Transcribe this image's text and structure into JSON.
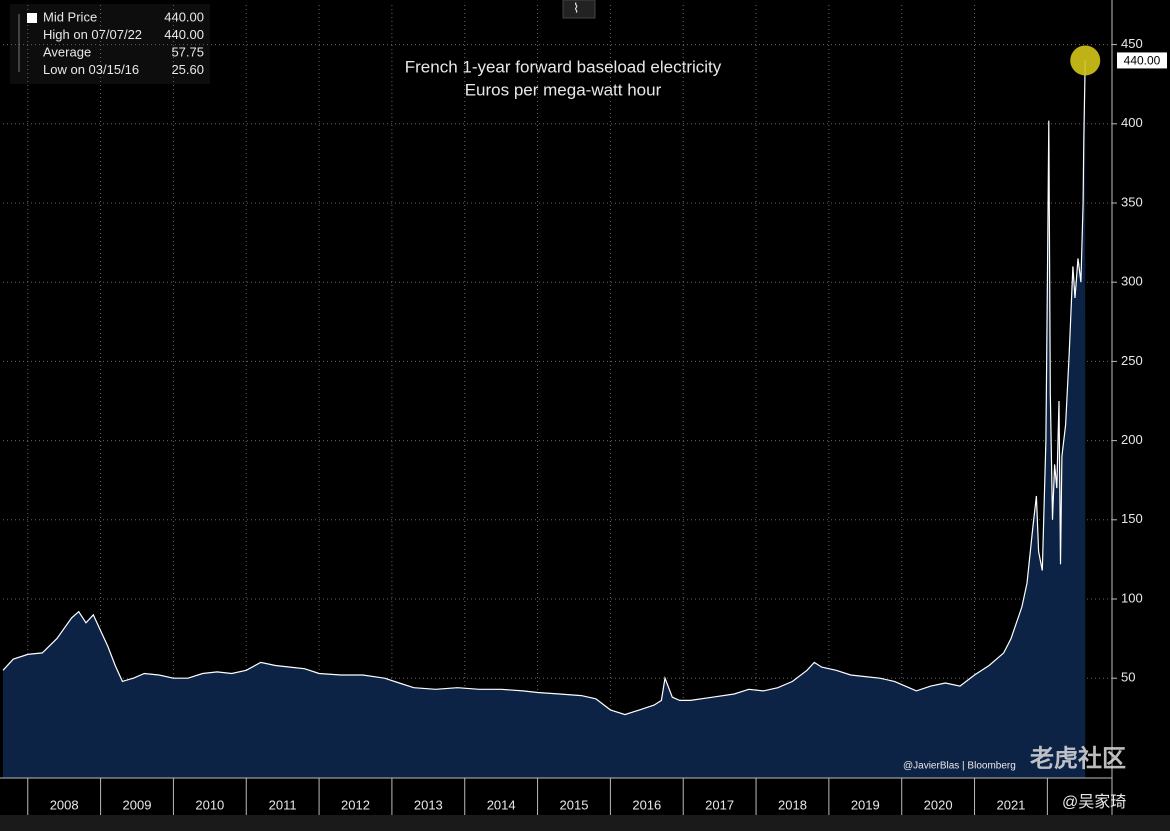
{
  "chart_data": {
    "type": "area",
    "title": "French 1-year forward baseload electricity",
    "subtitle": "Euros per mega-watt hour",
    "legend": [
      {
        "label": "Mid Price",
        "value": "440.00"
      },
      {
        "label": "High on 07/07/22",
        "value": "440.00"
      },
      {
        "label": "Average",
        "value": "57.75"
      },
      {
        "label": "Low on 03/15/16",
        "value": "25.60"
      }
    ],
    "last_value_label": "440.00",
    "credits": [
      "@JavierBlas | Bloomberg",
      "老虎社区",
      "@吴家琦"
    ],
    "x": [
      2007.66,
      2007.8,
      2008.0,
      2008.2,
      2008.4,
      2008.6,
      2008.7,
      2008.8,
      2008.9,
      2009.0,
      2009.1,
      2009.2,
      2009.3,
      2009.45,
      2009.6,
      2009.8,
      2010.0,
      2010.2,
      2010.4,
      2010.6,
      2010.8,
      2011.0,
      2011.2,
      2011.4,
      2011.6,
      2011.8,
      2012.0,
      2012.3,
      2012.6,
      2012.9,
      2013.1,
      2013.3,
      2013.6,
      2013.9,
      2014.2,
      2014.5,
      2014.8,
      2015.0,
      2015.3,
      2015.6,
      2015.8,
      2016.0,
      2016.2,
      2016.4,
      2016.6,
      2016.7,
      2016.75,
      2016.85,
      2016.95,
      2017.1,
      2017.4,
      2017.7,
      2017.9,
      2018.1,
      2018.3,
      2018.5,
      2018.7,
      2018.8,
      2018.9,
      2019.1,
      2019.3,
      2019.5,
      2019.7,
      2019.9,
      2020.1,
      2020.2,
      2020.4,
      2020.6,
      2020.8,
      2021.0,
      2021.2,
      2021.4,
      2021.5,
      2021.65,
      2021.72,
      2021.8,
      2021.85,
      2021.88,
      2021.93,
      2021.98,
      2022.0,
      2022.02,
      2022.04,
      2022.07,
      2022.1,
      2022.13,
      2022.16,
      2022.18,
      2022.2,
      2022.25,
      2022.3,
      2022.35,
      2022.38,
      2022.42,
      2022.46,
      2022.49,
      2022.5,
      2022.52
    ],
    "series": [
      {
        "name": "Mid Price",
        "color": "#ffffff",
        "fill": "#0c2345",
        "values": [
          55,
          62,
          65,
          66,
          75,
          88,
          92,
          85,
          90,
          80,
          70,
          58,
          48,
          50,
          53,
          52,
          50,
          50,
          53,
          54,
          53,
          55,
          60,
          58,
          57,
          56,
          53,
          52,
          52,
          50,
          47,
          44,
          43,
          44,
          43,
          43,
          42,
          41,
          40,
          39,
          37,
          30,
          27,
          30,
          33,
          36,
          50,
          38,
          36,
          36,
          38,
          40,
          43,
          42,
          44,
          48,
          55,
          60,
          57,
          55,
          52,
          51,
          50,
          48,
          44,
          42,
          45,
          47,
          45,
          52,
          58,
          66,
          75,
          95,
          110,
          145,
          165,
          130,
          118,
          200,
          300,
          402,
          230,
          150,
          185,
          170,
          225,
          122,
          190,
          210,
          255,
          310,
          290,
          315,
          300,
          350,
          390,
          440
        ]
      }
    ],
    "xlim": [
      2007.66,
      2022.86
    ],
    "xticks": [
      2008,
      2009,
      2010,
      2011,
      2012,
      2013,
      2014,
      2015,
      2016,
      2017,
      2018,
      2019,
      2020,
      2021
    ],
    "ylim": [
      -13,
      475
    ],
    "yticks": [
      50,
      100,
      150,
      200,
      250,
      300,
      350,
      400,
      450
    ],
    "grid": true,
    "marker_color": "#d4c51a"
  }
}
